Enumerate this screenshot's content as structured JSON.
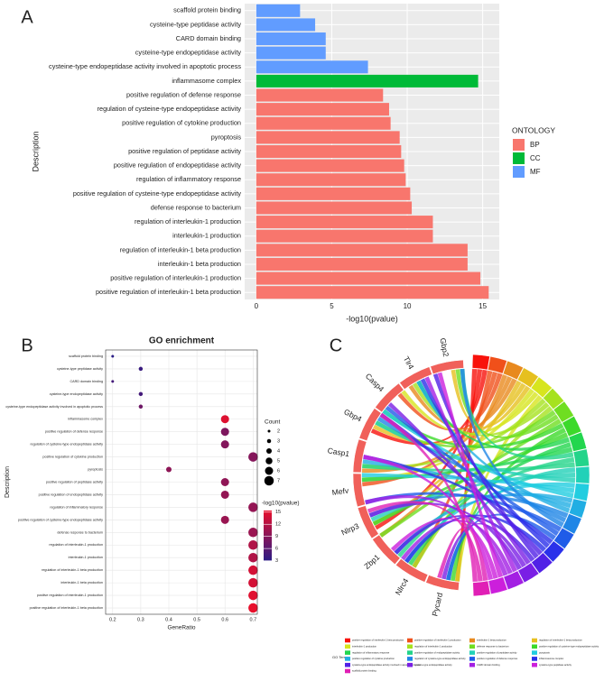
{
  "chart_data": [
    {
      "type": "barh",
      "label": "A",
      "x_label": "-log10(pvalue)",
      "y_label": "Description",
      "categories": [
        "scaffold protein binding",
        "cysteine-type peptidase activity",
        "CARD domain binding",
        "cysteine-type endopeptidase activity",
        "cysteine-type endopeptidase activity involved in apoptotic process",
        "inflammasome complex",
        "positive regulation of defense response",
        "regulation of cysteine-type endopeptidase activity",
        "positive regulation of cytokine production",
        "pyroptosis",
        "positive regulation of peptidase activity",
        "positive regulation of endopeptidase activity",
        "regulation of inflammatory response",
        "positive regulation of cysteine-type endopeptidase activity",
        "defense response to bacterium",
        "regulation of interleukin-1 production",
        "interleukin-1 production",
        "regulation of interleukin-1 beta production",
        "interleukin-1 beta production",
        "positive regulation of interleukin-1 production",
        "positive regulation of interleukin-1 beta production"
      ],
      "values": [
        2.9,
        3.9,
        4.6,
        4.6,
        7.4,
        14.7,
        8.4,
        8.8,
        8.9,
        9.5,
        9.6,
        9.8,
        9.9,
        10.2,
        10.3,
        11.7,
        11.7,
        14.0,
        14.0,
        14.85,
        15.4
      ],
      "ontology": [
        "MF",
        "MF",
        "MF",
        "MF",
        "MF",
        "CC",
        "BP",
        "BP",
        "BP",
        "BP",
        "BP",
        "BP",
        "BP",
        "BP",
        "BP",
        "BP",
        "BP",
        "BP",
        "BP",
        "BP",
        "BP"
      ],
      "legend": {
        "title": "ONTOLOGY",
        "items": [
          {
            "name": "BP",
            "color": "#F8766D"
          },
          {
            "name": "CC",
            "color": "#00BA38"
          },
          {
            "name": "MF",
            "color": "#619CFF"
          }
        ]
      },
      "xlim": [
        -0.77,
        16.1
      ],
      "xticks": [
        0,
        5,
        10,
        15
      ],
      "grid": true
    },
    {
      "type": "dot",
      "label": "B",
      "title": "GO enrichment",
      "x_label": "GeneRatio",
      "y_label": "Description",
      "categories": [
        "scaffold protein binding",
        "cysteine-type peptidase activity",
        "CARD domain binding",
        "cysteine-type endopeptidase activity",
        "cysteine-type endopeptidase activity involved in apoptotic process",
        "inflammasome complex",
        "positive regulation of defense response",
        "regulation of cysteine-type endopeptidase activity",
        "positive regulation of cytokine production",
        "pyroptosis",
        "positive regulation of peptidase activity",
        "positive regulation of endopeptidase activity",
        "regulation of inflammatory response",
        "positive regulation of cysteine-type endopeptidase activity",
        "defense response to bacterium",
        "regulation of interleukin-1 production",
        "interleukin-1 production",
        "regulation of interleukin-1 beta production",
        "interleukin-1 beta production",
        "positive regulation of interleukin-1 production",
        "positive regulation of interleukin-1 beta production"
      ],
      "values": [
        0.2,
        0.3,
        0.2,
        0.3,
        0.3,
        0.6,
        0.6,
        0.6,
        0.7,
        0.4,
        0.6,
        0.6,
        0.7,
        0.6,
        0.7,
        0.7,
        0.7,
        0.7,
        0.7,
        0.7,
        0.7
      ],
      "counts": [
        2,
        3,
        2,
        3,
        3,
        6,
        6,
        6,
        7,
        4,
        6,
        6,
        7,
        6,
        7,
        7,
        7,
        7,
        7,
        7,
        7
      ],
      "pvalues": [
        2.9,
        3.9,
        4.6,
        4.6,
        7.4,
        14.7,
        8.4,
        8.8,
        8.9,
        9.5,
        9.6,
        9.8,
        9.9,
        10.2,
        10.3,
        11.7,
        11.7,
        14.0,
        14.0,
        14.85,
        15.4
      ],
      "xlim": [
        0.175,
        0.715
      ],
      "xticks": [
        0.2,
        0.3,
        0.4,
        0.5,
        0.6,
        0.7
      ],
      "grid": true,
      "size_legend": {
        "title": "Count",
        "values": [
          2,
          3,
          4,
          5,
          6,
          7
        ]
      },
      "color_legend": {
        "title": "-log10(pvalue)",
        "lim": [
          2.9,
          15.4
        ],
        "ticks": [
          3,
          6,
          9,
          12,
          15
        ],
        "low": "#2A1C86",
        "high": "#E8102C"
      }
    },
    {
      "type": "chord",
      "label": "C",
      "gene_color": "#F0605A",
      "genes": [
        "Pycard",
        "Nlrc4",
        "Zbp1",
        "Nlrp3",
        "Mefv",
        "Casp1",
        "Gbp4",
        "Casp4",
        "Tlr4",
        "Gbp2"
      ],
      "legend_title": "GO Terms",
      "terms": [
        "positive regulation of interleukin-1 beta production",
        "positive regulation of interleukin-1 production",
        "interleukin-1 beta production",
        "regulation of interleukin-1 beta production",
        "interleukin-1 production",
        "regulation of interleukin-1 production",
        "defense response to bacterium",
        "positive regulation of cysteine-type endopeptidase activity",
        "regulation of inflammatory response",
        "positive regulation of endopeptidase activity",
        "positive regulation of peptidase activity",
        "pyroptosis",
        "positive regulation of cytokine production",
        "regulation of cysteine-type endopeptidase activity",
        "positive regulation of defense response",
        "inflammasome complex",
        "cysteine-type endopeptidase activity involved in apoptotic process",
        "cysteine-type endopeptidase activity",
        "CARD domain binding",
        "cysteine-type peptidase activity",
        "scaffold protein binding"
      ],
      "term_colors": [
        "#F8120B",
        "#F0501A",
        "#E8891E",
        "#E6C01F",
        "#D7E51F",
        "#A6E21F",
        "#6FDE21",
        "#3CD92A",
        "#22D64E",
        "#23D48A",
        "#22D1B8",
        "#22CDE0",
        "#21AEE3",
        "#1F86E6",
        "#1F5CE8",
        "#2A30EA",
        "#5120E6",
        "#7A1FE5",
        "#A31FE3",
        "#CC1FDC",
        "#E01FB5"
      ]
    }
  ]
}
